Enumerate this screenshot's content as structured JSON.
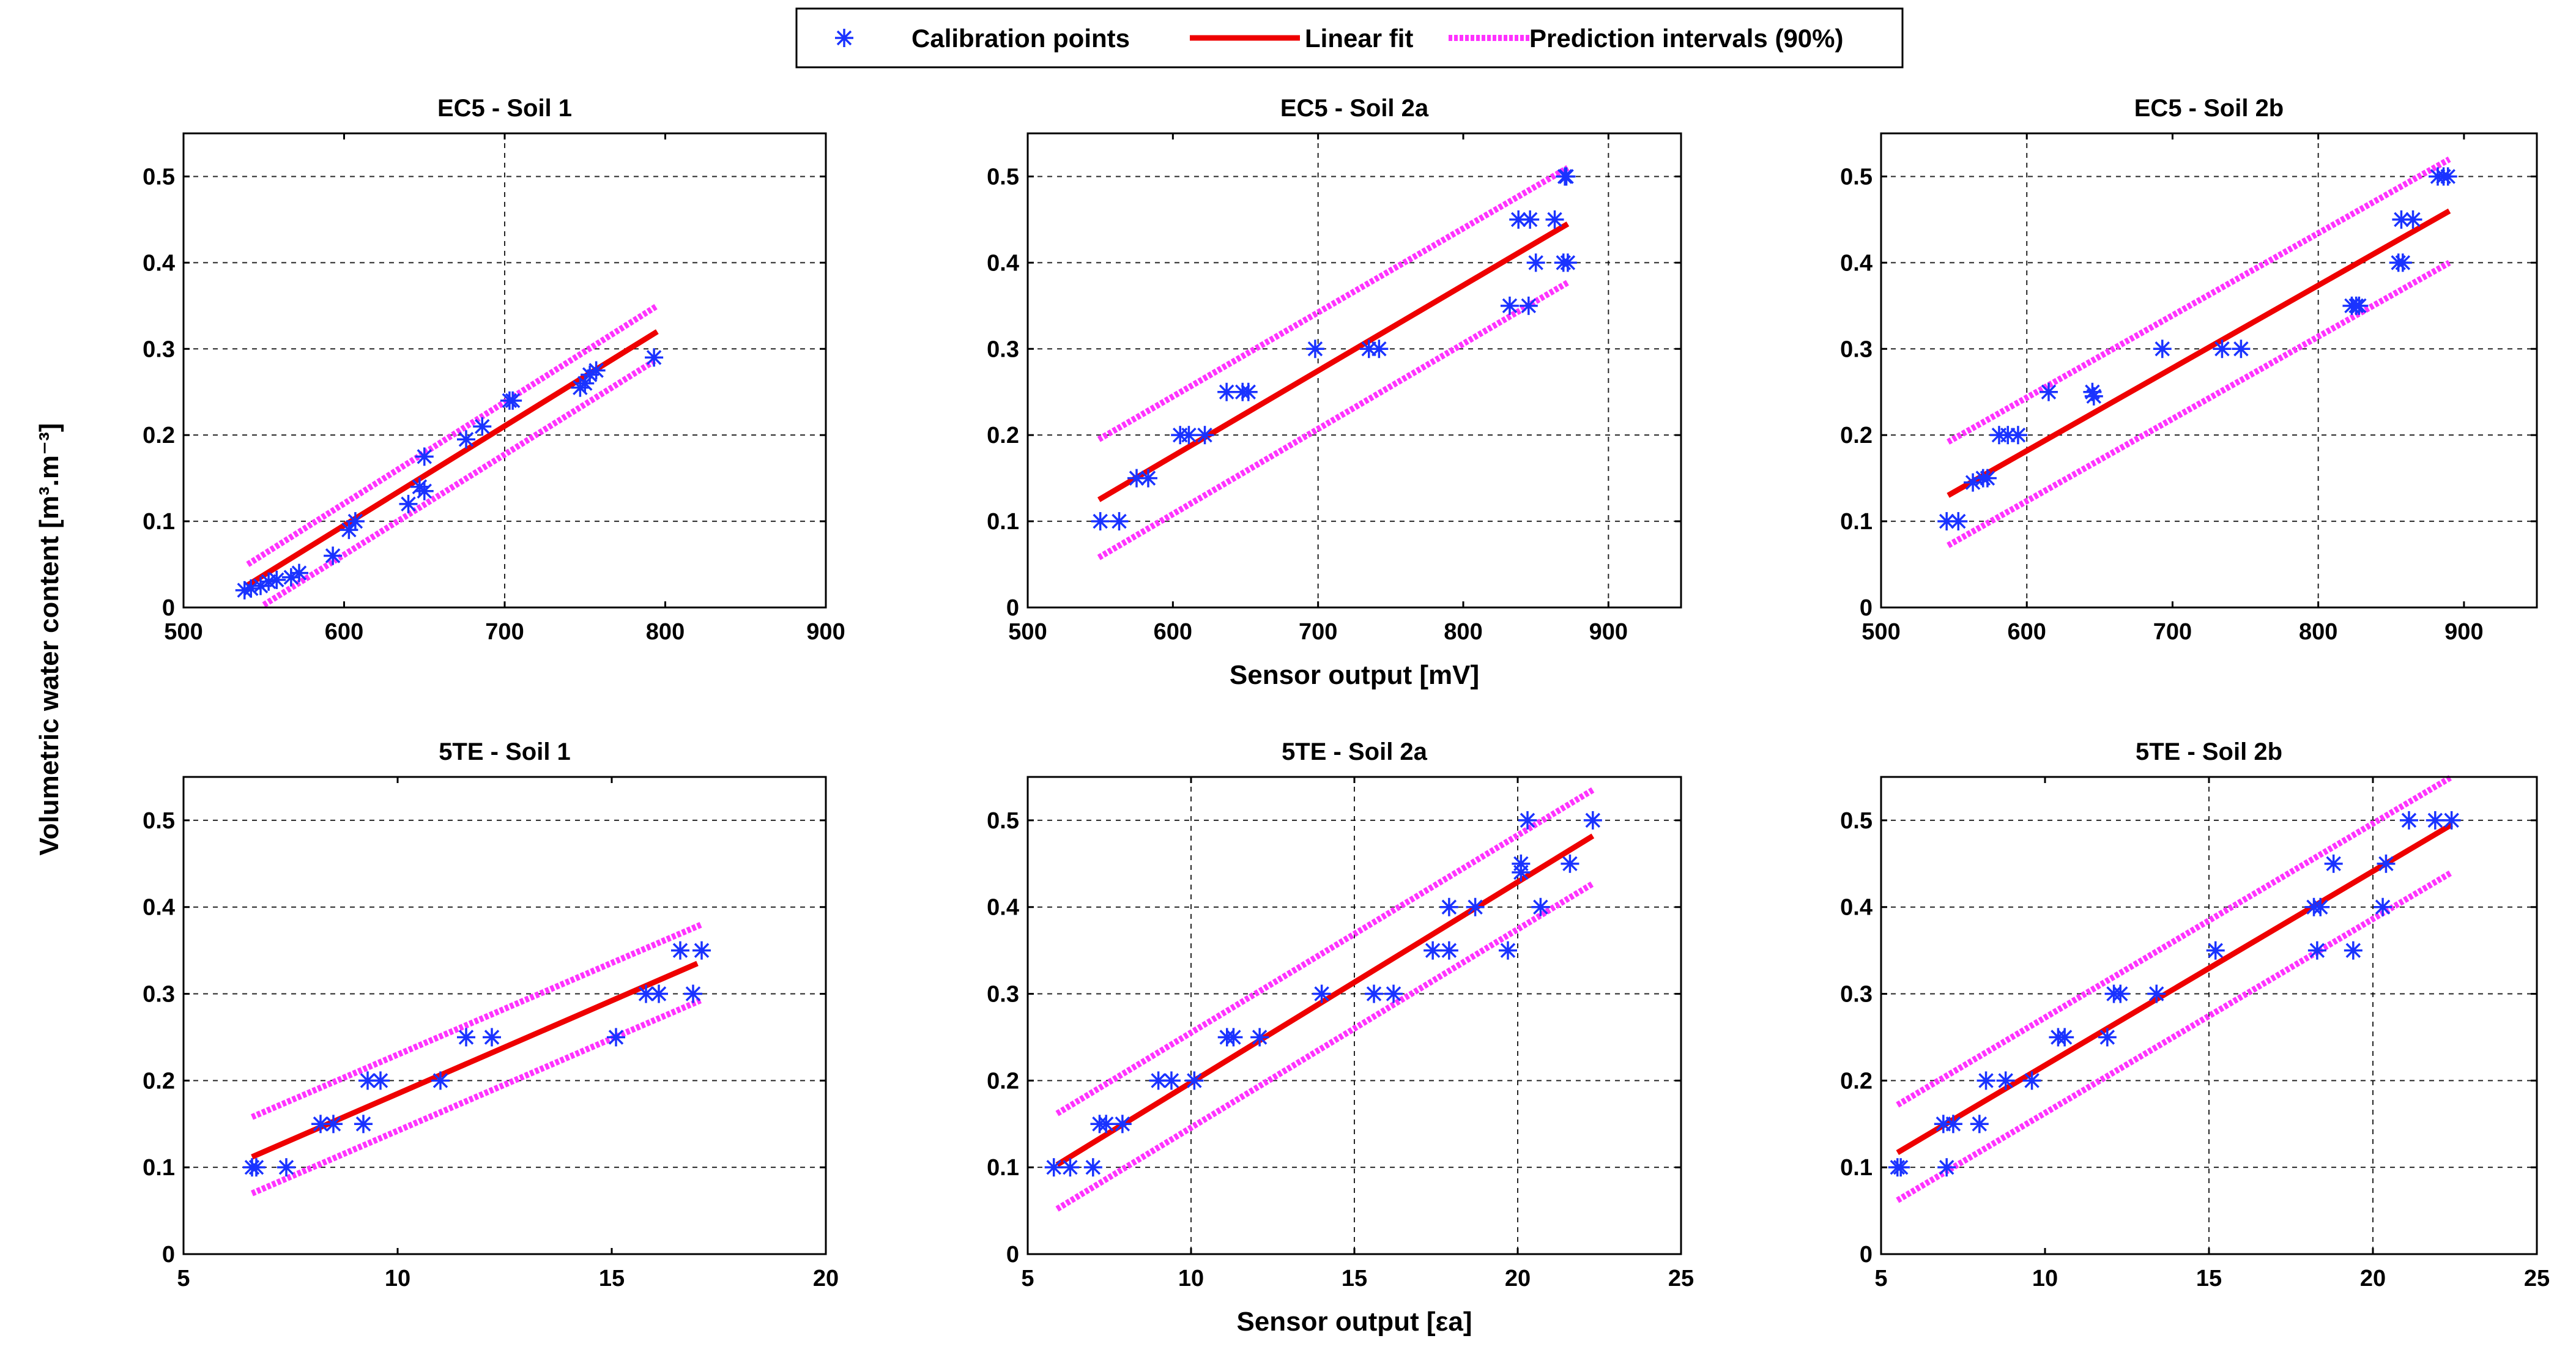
{
  "legend": {
    "items": [
      {
        "label": "Calibration points",
        "kind": "marker"
      },
      {
        "label": "Linear fit",
        "kind": "fit"
      },
      {
        "label": "Prediction intervals (90%)",
        "kind": "pi"
      }
    ]
  },
  "ylabel": "Volumetric water content [m³.m⁻³]",
  "colors": {
    "points": "#1a33ff",
    "fit": "#ee0000",
    "pi": "#ff33ff"
  },
  "chart_data": [
    {
      "type": "scatter",
      "title": "EC5 - Soil 1",
      "xlabel": "",
      "xlim": [
        500,
        900
      ],
      "ylim": [
        0,
        0.55
      ],
      "xticks": [
        500,
        600,
        700,
        800,
        900
      ],
      "yticks": [
        0,
        0.1,
        0.2,
        0.3,
        0.4,
        0.5
      ],
      "xgrid": [
        700
      ],
      "ygrid": [
        0.1,
        0.2,
        0.3,
        0.4,
        0.5
      ],
      "points": [
        [
          538,
          0.02
        ],
        [
          542,
          0.022
        ],
        [
          548,
          0.025
        ],
        [
          553,
          0.03
        ],
        [
          558,
          0.032
        ],
        [
          567,
          0.035
        ],
        [
          572,
          0.04
        ],
        [
          593,
          0.06
        ],
        [
          603,
          0.09
        ],
        [
          607,
          0.1
        ],
        [
          640,
          0.12
        ],
        [
          647,
          0.14
        ],
        [
          650,
          0.135
        ],
        [
          650,
          0.175
        ],
        [
          676,
          0.195
        ],
        [
          686,
          0.21
        ],
        [
          703,
          0.24
        ],
        [
          705,
          0.24
        ],
        [
          747,
          0.255
        ],
        [
          750,
          0.26
        ],
        [
          753,
          0.27
        ],
        [
          757,
          0.275
        ],
        [
          793,
          0.29
        ]
      ],
      "fit": [
        [
          540,
          0.026
        ],
        [
          795,
          0.32
        ]
      ],
      "pi_upper": [
        [
          540,
          0.05
        ],
        [
          795,
          0.35
        ]
      ],
      "pi_lower": [
        [
          550,
          0.003
        ],
        [
          795,
          0.288
        ]
      ]
    },
    {
      "type": "scatter",
      "title": "EC5 - Soil 2a",
      "xlabel": "Sensor output [mV]",
      "xlim": [
        500,
        950
      ],
      "ylim": [
        0,
        0.55
      ],
      "xticks": [
        500,
        600,
        700,
        800,
        900
      ],
      "yticks": [
        0,
        0.1,
        0.2,
        0.3,
        0.4,
        0.5
      ],
      "xgrid": [
        700,
        900
      ],
      "ygrid": [
        0.1,
        0.2,
        0.3,
        0.4,
        0.5
      ],
      "points": [
        [
          550,
          0.1
        ],
        [
          563,
          0.1
        ],
        [
          575,
          0.15
        ],
        [
          583,
          0.15
        ],
        [
          605,
          0.2
        ],
        [
          611,
          0.2
        ],
        [
          622,
          0.2
        ],
        [
          637,
          0.25
        ],
        [
          648,
          0.25
        ],
        [
          652,
          0.25
        ],
        [
          698,
          0.3
        ],
        [
          735,
          0.3
        ],
        [
          742,
          0.3
        ],
        [
          832,
          0.35
        ],
        [
          838,
          0.45
        ],
        [
          845,
          0.35
        ],
        [
          846,
          0.45
        ],
        [
          850,
          0.4
        ],
        [
          863,
          0.45
        ],
        [
          869,
          0.4
        ],
        [
          870,
          0.5
        ],
        [
          871,
          0.5
        ],
        [
          872,
          0.4
        ]
      ],
      "fit": [
        [
          549,
          0.125
        ],
        [
          872,
          0.445
        ]
      ],
      "pi_upper": [
        [
          549,
          0.195
        ],
        [
          872,
          0.51
        ]
      ],
      "pi_lower": [
        [
          549,
          0.058
        ],
        [
          872,
          0.377
        ]
      ]
    },
    {
      "type": "scatter",
      "title": "EC5 - Soil 2b",
      "xlabel": "",
      "xlim": [
        500,
        950
      ],
      "ylim": [
        0,
        0.55
      ],
      "xticks": [
        500,
        600,
        700,
        800,
        900
      ],
      "yticks": [
        0,
        0.1,
        0.2,
        0.3,
        0.4,
        0.5
      ],
      "xgrid": [
        600,
        800
      ],
      "ygrid": [
        0.1,
        0.2,
        0.3,
        0.4,
        0.5
      ],
      "points": [
        [
          545,
          0.1
        ],
        [
          553,
          0.1
        ],
        [
          563,
          0.145
        ],
        [
          570,
          0.15
        ],
        [
          573,
          0.15
        ],
        [
          581,
          0.2
        ],
        [
          587,
          0.2
        ],
        [
          594,
          0.2
        ],
        [
          615,
          0.25
        ],
        [
          645,
          0.25
        ],
        [
          646,
          0.245
        ],
        [
          693,
          0.3
        ],
        [
          734,
          0.3
        ],
        [
          747,
          0.3
        ],
        [
          823,
          0.35
        ],
        [
          826,
          0.35
        ],
        [
          828,
          0.35
        ],
        [
          855,
          0.4
        ],
        [
          857,
          0.45
        ],
        [
          858,
          0.4
        ],
        [
          865,
          0.45
        ],
        [
          882,
          0.5
        ],
        [
          886,
          0.5
        ],
        [
          889,
          0.5
        ]
      ],
      "fit": [
        [
          546,
          0.13
        ],
        [
          890,
          0.46
        ]
      ],
      "pi_upper": [
        [
          546,
          0.192
        ],
        [
          890,
          0.52
        ]
      ],
      "pi_lower": [
        [
          546,
          0.072
        ],
        [
          890,
          0.4
        ]
      ]
    },
    {
      "type": "scatter",
      "title": "5TE - Soil 1",
      "xlabel": "",
      "xlim": [
        5,
        20
      ],
      "ylim": [
        0,
        0.55
      ],
      "xticks": [
        5,
        10,
        15,
        20
      ],
      "yticks": [
        0,
        0.1,
        0.2,
        0.3,
        0.4,
        0.5
      ],
      "xgrid": [],
      "ygrid": [
        0.1,
        0.2,
        0.3,
        0.4,
        0.5
      ],
      "points": [
        [
          6.6,
          0.1
        ],
        [
          6.7,
          0.1
        ],
        [
          7.4,
          0.1
        ],
        [
          8.2,
          0.15
        ],
        [
          8.5,
          0.15
        ],
        [
          9.2,
          0.15
        ],
        [
          9.3,
          0.2
        ],
        [
          9.6,
          0.2
        ],
        [
          11.0,
          0.2
        ],
        [
          11.6,
          0.25
        ],
        [
          12.2,
          0.25
        ],
        [
          15.1,
          0.25
        ],
        [
          15.8,
          0.3
        ],
        [
          16.1,
          0.3
        ],
        [
          16.6,
          0.35
        ],
        [
          16.9,
          0.3
        ],
        [
          17.1,
          0.35
        ]
      ],
      "fit": [
        [
          6.6,
          0.112
        ],
        [
          17.0,
          0.335
        ]
      ],
      "pi_upper": [
        [
          6.6,
          0.158
        ],
        [
          17.1,
          0.38
        ]
      ],
      "pi_lower": [
        [
          6.6,
          0.07
        ],
        [
          17.1,
          0.293
        ]
      ]
    },
    {
      "type": "scatter",
      "title": "5TE - Soil 2a",
      "xlabel": "Sensor output [εa]",
      "xlim": [
        5,
        25
      ],
      "ylim": [
        0,
        0.55
      ],
      "xticks": [
        5,
        10,
        15,
        20,
        25
      ],
      "yticks": [
        0,
        0.1,
        0.2,
        0.3,
        0.4,
        0.5
      ],
      "xgrid": [
        10,
        15,
        20
      ],
      "ygrid": [
        0.1,
        0.2,
        0.3,
        0.4,
        0.5
      ],
      "points": [
        [
          5.8,
          0.1
        ],
        [
          6.3,
          0.1
        ],
        [
          7.0,
          0.1
        ],
        [
          7.2,
          0.15
        ],
        [
          7.4,
          0.15
        ],
        [
          7.9,
          0.15
        ],
        [
          9.0,
          0.2
        ],
        [
          9.4,
          0.2
        ],
        [
          10.1,
          0.2
        ],
        [
          11.1,
          0.25
        ],
        [
          11.3,
          0.25
        ],
        [
          12.1,
          0.25
        ],
        [
          14.0,
          0.3
        ],
        [
          15.6,
          0.3
        ],
        [
          16.2,
          0.3
        ],
        [
          17.4,
          0.35
        ],
        [
          17.9,
          0.35
        ],
        [
          17.9,
          0.4
        ],
        [
          18.7,
          0.4
        ],
        [
          19.7,
          0.35
        ],
        [
          20.1,
          0.45
        ],
        [
          20.1,
          0.44
        ],
        [
          20.3,
          0.5
        ],
        [
          20.7,
          0.4
        ],
        [
          21.6,
          0.45
        ],
        [
          22.3,
          0.5
        ]
      ],
      "fit": [
        [
          5.9,
          0.103
        ],
        [
          22.3,
          0.482
        ]
      ],
      "pi_upper": [
        [
          5.9,
          0.162
        ],
        [
          22.3,
          0.535
        ]
      ],
      "pi_lower": [
        [
          5.9,
          0.052
        ],
        [
          22.3,
          0.427
        ]
      ]
    },
    {
      "type": "scatter",
      "title": "5TE - Soil 2b",
      "xlabel": "",
      "xlim": [
        5,
        25
      ],
      "ylim": [
        0,
        0.55
      ],
      "xticks": [
        5,
        10,
        15,
        20,
        25
      ],
      "yticks": [
        0,
        0.1,
        0.2,
        0.3,
        0.4,
        0.5
      ],
      "xgrid": [
        15,
        20
      ],
      "ygrid": [
        0.1,
        0.2,
        0.3,
        0.4,
        0.5
      ],
      "points": [
        [
          5.5,
          0.1
        ],
        [
          5.6,
          0.1
        ],
        [
          6.9,
          0.15
        ],
        [
          7.0,
          0.1
        ],
        [
          7.2,
          0.15
        ],
        [
          8.0,
          0.15
        ],
        [
          8.2,
          0.2
        ],
        [
          8.8,
          0.2
        ],
        [
          9.6,
          0.2
        ],
        [
          10.4,
          0.25
        ],
        [
          10.6,
          0.25
        ],
        [
          11.9,
          0.25
        ],
        [
          12.1,
          0.3
        ],
        [
          12.3,
          0.3
        ],
        [
          13.4,
          0.3
        ],
        [
          15.2,
          0.35
        ],
        [
          18.2,
          0.4
        ],
        [
          18.3,
          0.35
        ],
        [
          18.4,
          0.4
        ],
        [
          18.8,
          0.45
        ],
        [
          19.4,
          0.35
        ],
        [
          20.3,
          0.4
        ],
        [
          20.4,
          0.45
        ],
        [
          21.1,
          0.5
        ],
        [
          21.9,
          0.5
        ],
        [
          22.4,
          0.5
        ]
      ],
      "fit": [
        [
          5.5,
          0.117
        ],
        [
          22.4,
          0.495
        ]
      ],
      "pi_upper": [
        [
          5.5,
          0.172
        ],
        [
          22.4,
          0.55
        ]
      ],
      "pi_lower": [
        [
          5.5,
          0.062
        ],
        [
          22.4,
          0.44
        ]
      ]
    }
  ]
}
